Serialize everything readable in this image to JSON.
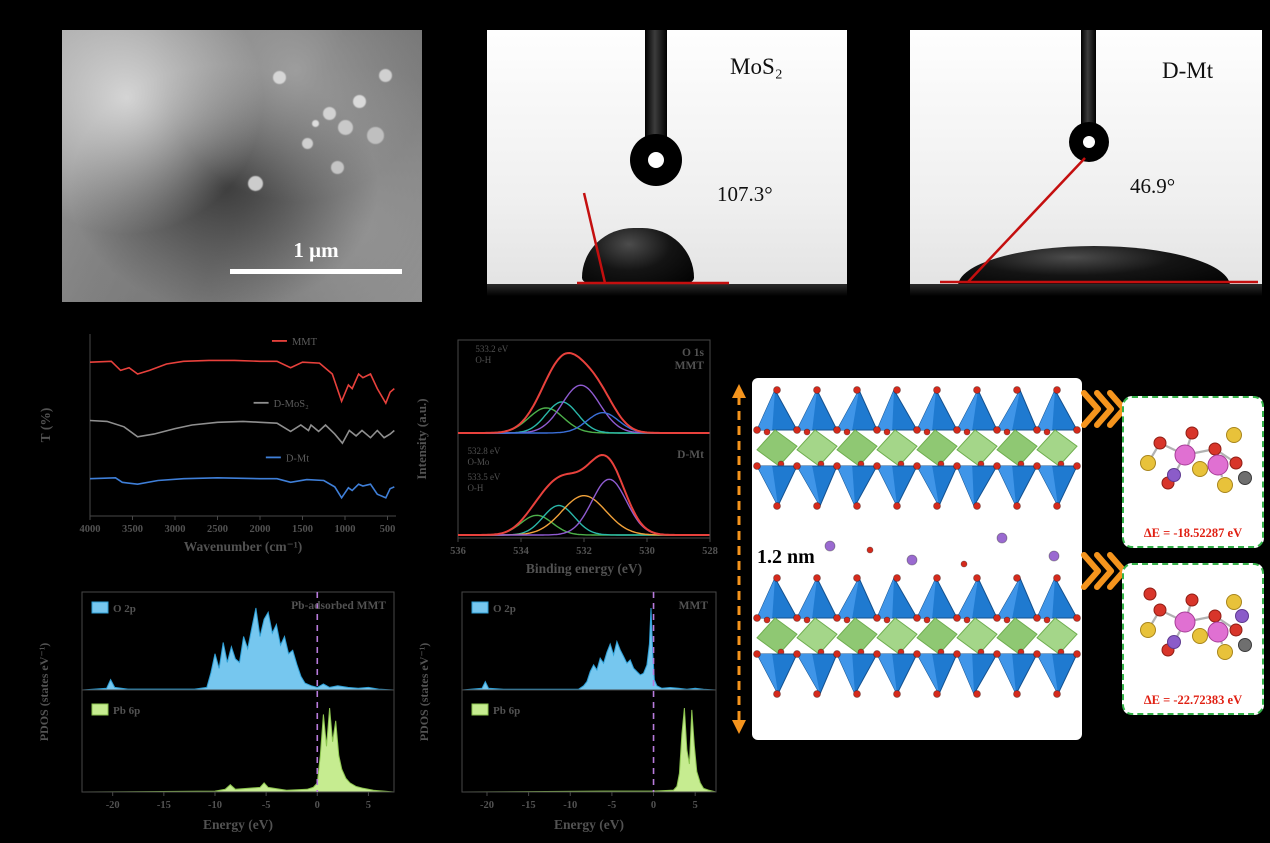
{
  "sem": {
    "scale_bar_label": "1 μm"
  },
  "contact_angles": [
    {
      "sample": "MoS₂",
      "angle": "107.3°"
    },
    {
      "sample": "D-Mt",
      "angle": "46.9°"
    }
  ],
  "structure": {
    "spacing_label": "1.2 nm",
    "insets": [
      {
        "energy_label": "ΔE = -18.52287 eV"
      },
      {
        "energy_label": "ΔE = -22.72383 eV"
      }
    ]
  },
  "chart_data": [
    {
      "id": "ftir",
      "type": "line",
      "title": "FTIR transmittance spectra",
      "xlabel": "Wavenumber (cm⁻¹)",
      "ylabel": "T (%)",
      "xlim": [
        4000,
        400
      ],
      "x_reversed": true,
      "x_ticks": [
        4000,
        3500,
        3000,
        2500,
        2000,
        1500,
        1000,
        500
      ],
      "grid": false,
      "series": [
        {
          "name": "MMT",
          "color": "#e8413c",
          "label_pos": [
            0.66,
            0.06
          ],
          "points": [
            [
              4000,
              0.845
            ],
            [
              3750,
              0.85
            ],
            [
              3640,
              0.8
            ],
            [
              3540,
              0.815
            ],
            [
              3440,
              0.78
            ],
            [
              3300,
              0.8
            ],
            [
              3100,
              0.835
            ],
            [
              2900,
              0.85
            ],
            [
              2600,
              0.855
            ],
            [
              2300,
              0.855
            ],
            [
              2000,
              0.85
            ],
            [
              1800,
              0.85
            ],
            [
              1640,
              0.815
            ],
            [
              1500,
              0.845
            ],
            [
              1300,
              0.84
            ],
            [
              1150,
              0.78
            ],
            [
              1040,
              0.63
            ],
            [
              960,
              0.72
            ],
            [
              915,
              0.7
            ],
            [
              840,
              0.78
            ],
            [
              790,
              0.76
            ],
            [
              700,
              0.78
            ],
            [
              620,
              0.7
            ],
            [
              520,
              0.62
            ],
            [
              470,
              0.68
            ],
            [
              420,
              0.7
            ]
          ]
        },
        {
          "name": "D-MoS₂",
          "color": "#8f8f8f",
          "label_pos": [
            0.6,
            0.4
          ],
          "points": [
            [
              4000,
              0.525
            ],
            [
              3800,
              0.52
            ],
            [
              3600,
              0.49
            ],
            [
              3440,
              0.435
            ],
            [
              3250,
              0.45
            ],
            [
              3000,
              0.48
            ],
            [
              2800,
              0.5
            ],
            [
              2500,
              0.515
            ],
            [
              2200,
              0.52
            ],
            [
              2000,
              0.515
            ],
            [
              1800,
              0.51
            ],
            [
              1640,
              0.465
            ],
            [
              1520,
              0.5
            ],
            [
              1430,
              0.47
            ],
            [
              1400,
              0.5
            ],
            [
              1310,
              0.465
            ],
            [
              1230,
              0.5
            ],
            [
              1120,
              0.45
            ],
            [
              1030,
              0.4
            ],
            [
              950,
              0.47
            ],
            [
              870,
              0.44
            ],
            [
              800,
              0.47
            ],
            [
              700,
              0.43
            ],
            [
              620,
              0.47
            ],
            [
              540,
              0.43
            ],
            [
              470,
              0.45
            ],
            [
              420,
              0.47
            ]
          ]
        },
        {
          "name": "D-Mt",
          "color": "#3f7fd8",
          "label_pos": [
            0.64,
            0.7
          ],
          "points": [
            [
              4000,
              0.205
            ],
            [
              3700,
              0.21
            ],
            [
              3620,
              0.185
            ],
            [
              3440,
              0.175
            ],
            [
              3200,
              0.195
            ],
            [
              2900,
              0.205
            ],
            [
              2500,
              0.21
            ],
            [
              2000,
              0.205
            ],
            [
              1800,
              0.205
            ],
            [
              1640,
              0.185
            ],
            [
              1450,
              0.2
            ],
            [
              1250,
              0.195
            ],
            [
              1120,
              0.16
            ],
            [
              1040,
              0.1
            ],
            [
              960,
              0.155
            ],
            [
              915,
              0.14
            ],
            [
              840,
              0.175
            ],
            [
              790,
              0.165
            ],
            [
              700,
              0.175
            ],
            [
              620,
              0.12
            ],
            [
              520,
              0.1
            ],
            [
              470,
              0.15
            ],
            [
              420,
              0.16
            ]
          ]
        }
      ]
    },
    {
      "id": "xps",
      "type": "line",
      "title": "O 1s XPS fitted spectra",
      "xlabel": "Binding energy (eV)",
      "ylabel": "Intensity (a.u.)",
      "xlim": [
        536,
        528
      ],
      "x_reversed": true,
      "x_ticks": [
        536,
        534,
        532,
        530,
        528
      ],
      "envelope_color": "#e8413c",
      "panels": [
        {
          "labels": [
            "O 1s",
            "MMT"
          ],
          "annotations": [
            {
              "x": 535.45,
              "lines": [
                "533.2 eV",
                "O-H"
              ]
            }
          ],
          "peaks": [
            {
              "center": 533.2,
              "sigma": 0.55,
              "amp": 0.42,
              "color": "#4db04a",
              "assignment": "O-H"
            },
            {
              "center": 532.7,
              "sigma": 0.5,
              "amp": 0.52,
              "color": "#2ab7a9"
            },
            {
              "center": 532.1,
              "sigma": 0.6,
              "amp": 0.8,
              "color": "#8f5bd1"
            },
            {
              "center": 531.4,
              "sigma": 0.5,
              "amp": 0.34,
              "color": "#3a6fd8"
            }
          ]
        },
        {
          "labels": [
            "D-Mt"
          ],
          "annotations": [
            {
              "x": 535.7,
              "lines": [
                "532.8 eV",
                "O-Mo"
              ]
            },
            {
              "x": 535.7,
              "lines": [
                "533.5 eV",
                "O-H"
              ]
            }
          ],
          "peaks": [
            {
              "center": 533.5,
              "sigma": 0.5,
              "amp": 0.3,
              "color": "#4db04a",
              "assignment": "O-H"
            },
            {
              "center": 532.8,
              "sigma": 0.5,
              "amp": 0.45,
              "color": "#2ab7a9",
              "assignment": "O-Mo"
            },
            {
              "center": 532.0,
              "sigma": 0.7,
              "amp": 0.6,
              "color": "#f0a13a"
            },
            {
              "center": 531.2,
              "sigma": 0.55,
              "amp": 0.85,
              "color": "#8f5bd1"
            }
          ]
        }
      ]
    },
    {
      "id": "pdos1",
      "type": "area",
      "label": "Pb-adsorbed MMT",
      "xlabel": "Energy (eV)",
      "ylabel": "PDOS (states eV⁻¹)",
      "xlim": [
        -23,
        7.5
      ],
      "x_ticks": [
        -20,
        -15,
        -10,
        -5,
        0,
        5
      ],
      "fermi_x": 0,
      "fermi_color": "#b87bdc",
      "series": [
        {
          "name": "O 2p",
          "fill": "#76c7ef",
          "stroke": "#2f9fd6",
          "points": [
            [
              -23,
              0
            ],
            [
              -20.6,
              0.02
            ],
            [
              -20.2,
              0.12
            ],
            [
              -19.8,
              0.03
            ],
            [
              -18.5,
              0.01
            ],
            [
              -16,
              0.01
            ],
            [
              -12,
              0.01
            ],
            [
              -10.8,
              0.03
            ],
            [
              -10.4,
              0.2
            ],
            [
              -10,
              0.42
            ],
            [
              -9.6,
              0.25
            ],
            [
              -9.2,
              0.55
            ],
            [
              -8.8,
              0.32
            ],
            [
              -8.4,
              0.5
            ],
            [
              -8,
              0.36
            ],
            [
              -7.6,
              0.32
            ],
            [
              -7.2,
              0.62
            ],
            [
              -6.8,
              0.48
            ],
            [
              -6.4,
              0.72
            ],
            [
              -6,
              0.95
            ],
            [
              -5.6,
              0.62
            ],
            [
              -5.2,
              0.82
            ],
            [
              -4.8,
              0.9
            ],
            [
              -4.4,
              0.66
            ],
            [
              -4,
              0.76
            ],
            [
              -3.6,
              0.52
            ],
            [
              -3.2,
              0.62
            ],
            [
              -2.8,
              0.42
            ],
            [
              -2.4,
              0.46
            ],
            [
              -2,
              0.3
            ],
            [
              -1.6,
              0.16
            ],
            [
              -1.2,
              0.08
            ],
            [
              -0.6,
              0.05
            ],
            [
              0,
              0.03
            ],
            [
              0.6,
              0.07
            ],
            [
              1.2,
              0.03
            ],
            [
              2,
              0.05
            ],
            [
              3,
              0.03
            ],
            [
              4,
              0.02
            ],
            [
              5,
              0.03
            ],
            [
              6,
              0.01
            ],
            [
              7.5,
              0
            ]
          ]
        },
        {
          "name": "Pb 6p",
          "fill": "#c6ec90",
          "stroke": "#8cc44f",
          "points": [
            [
              -23,
              0
            ],
            [
              -10,
              0.01
            ],
            [
              -9,
              0.03
            ],
            [
              -8.5,
              0.08
            ],
            [
              -8,
              0.03
            ],
            [
              -5.6,
              0.05
            ],
            [
              -5.2,
              0.1
            ],
            [
              -4.8,
              0.05
            ],
            [
              -3,
              0.02
            ],
            [
              -1,
              0.03
            ],
            [
              -0.4,
              0.05
            ],
            [
              0,
              0.1
            ],
            [
              0.3,
              0.4
            ],
            [
              0.6,
              0.85
            ],
            [
              0.9,
              0.5
            ],
            [
              1.2,
              0.92
            ],
            [
              1.5,
              0.55
            ],
            [
              1.8,
              0.78
            ],
            [
              2.1,
              0.4
            ],
            [
              2.4,
              0.25
            ],
            [
              2.8,
              0.15
            ],
            [
              3.2,
              0.1
            ],
            [
              3.8,
              0.06
            ],
            [
              4.5,
              0.04
            ],
            [
              5.5,
              0.02
            ],
            [
              6.5,
              0.01
            ],
            [
              7.5,
              0
            ]
          ]
        }
      ]
    },
    {
      "id": "pdos2",
      "type": "area",
      "label": "MMT",
      "xlabel": "Energy (eV)",
      "ylabel": "PDOS (states eV⁻¹)",
      "xlim": [
        -23,
        7.5
      ],
      "x_ticks": [
        -20,
        -15,
        -10,
        -5,
        0,
        5
      ],
      "fermi_x": 0,
      "fermi_color": "#b87bdc",
      "series": [
        {
          "name": "O 2p",
          "fill": "#76c7ef",
          "stroke": "#2f9fd6",
          "points": [
            [
              -23,
              0
            ],
            [
              -20.6,
              0.02
            ],
            [
              -20.2,
              0.1
            ],
            [
              -19.8,
              0.02
            ],
            [
              -18,
              0.01
            ],
            [
              -9,
              0.01
            ],
            [
              -8.4,
              0.05
            ],
            [
              -8,
              0.1
            ],
            [
              -7.6,
              0.22
            ],
            [
              -7.2,
              0.3
            ],
            [
              -6.8,
              0.24
            ],
            [
              -6.4,
              0.38
            ],
            [
              -6,
              0.32
            ],
            [
              -5.6,
              0.45
            ],
            [
              -5.2,
              0.55
            ],
            [
              -4.8,
              0.42
            ],
            [
              -4.4,
              0.58
            ],
            [
              -4,
              0.48
            ],
            [
              -3.6,
              0.4
            ],
            [
              -3.2,
              0.32
            ],
            [
              -2.8,
              0.36
            ],
            [
              -2.4,
              0.26
            ],
            [
              -2,
              0.22
            ],
            [
              -1.6,
              0.18
            ],
            [
              -1.2,
              0.2
            ],
            [
              -0.8,
              0.3
            ],
            [
              -0.5,
              0.55
            ],
            [
              -0.3,
              0.98
            ],
            [
              -0.1,
              0.45
            ],
            [
              0.1,
              0.12
            ],
            [
              0.4,
              0.05
            ],
            [
              1,
              0.02
            ],
            [
              2,
              0.03
            ],
            [
              3,
              0.02
            ],
            [
              4,
              0.01
            ],
            [
              5,
              0.02
            ],
            [
              6,
              0.01
            ],
            [
              7.5,
              0
            ]
          ]
        },
        {
          "name": "Pb 6p",
          "fill": "#c6ec90",
          "stroke": "#8cc44f",
          "points": [
            [
              -23,
              0
            ],
            [
              -6,
              0.01
            ],
            [
              -2,
              0.01
            ],
            [
              0,
              0.01
            ],
            [
              2.4,
              0.02
            ],
            [
              2.8,
              0.06
            ],
            [
              3.1,
              0.2
            ],
            [
              3.4,
              0.62
            ],
            [
              3.7,
              0.9
            ],
            [
              4,
              0.45
            ],
            [
              4.3,
              0.3
            ],
            [
              4.6,
              0.88
            ],
            [
              4.9,
              0.5
            ],
            [
              5.2,
              0.22
            ],
            [
              5.6,
              0.1
            ],
            [
              6,
              0.04
            ],
            [
              6.6,
              0.02
            ],
            [
              7.5,
              0
            ]
          ]
        }
      ]
    }
  ]
}
